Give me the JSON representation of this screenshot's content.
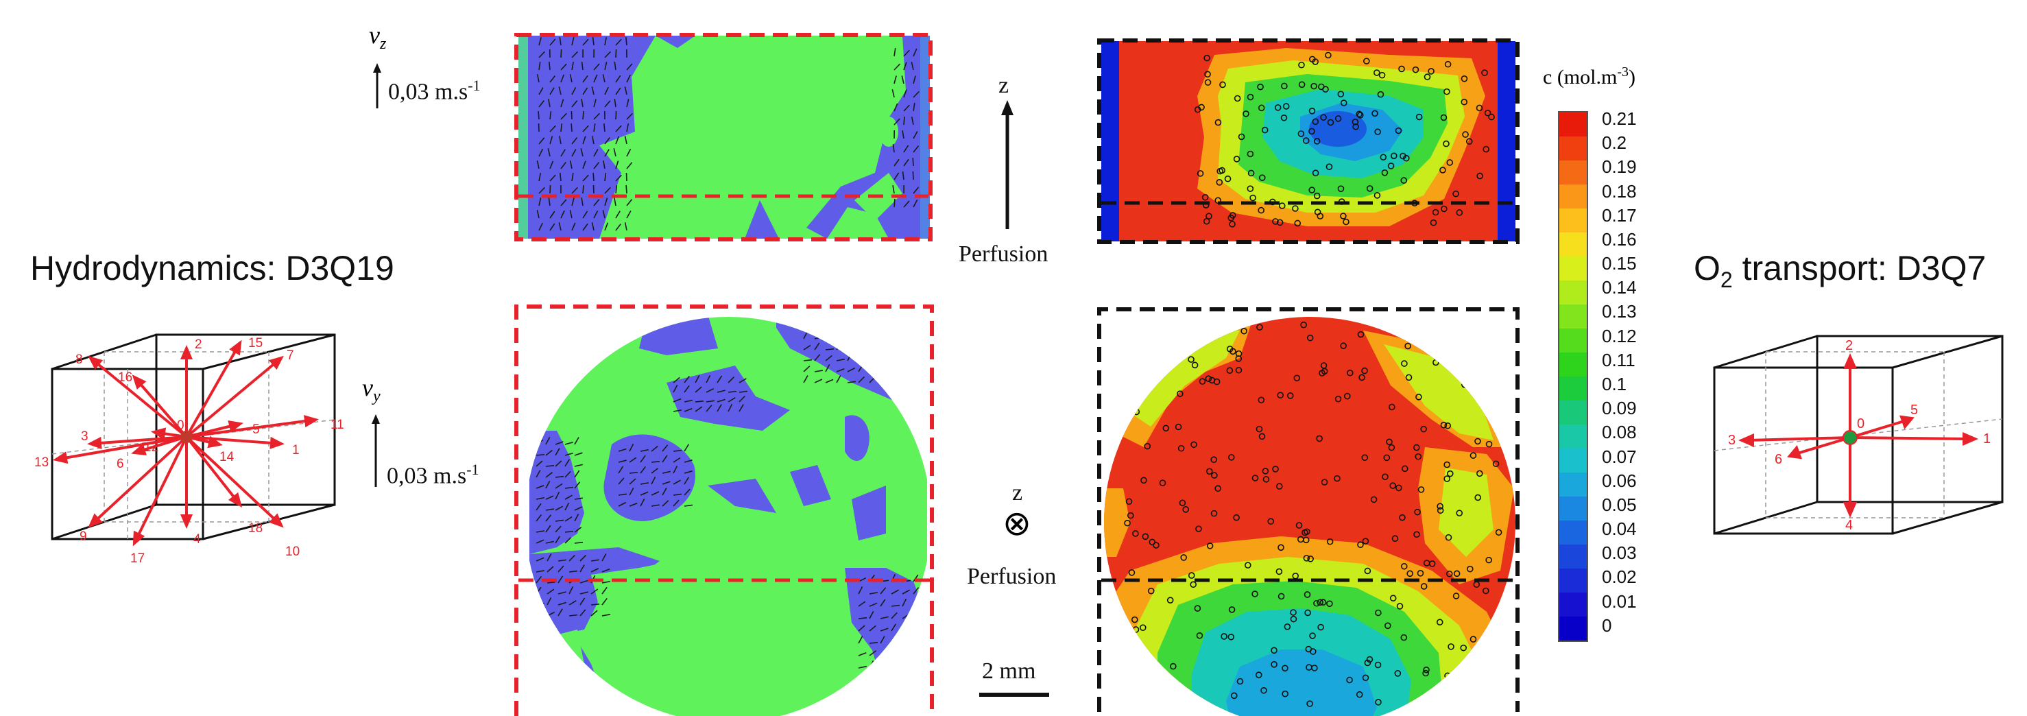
{
  "hydrodynamics": {
    "title": "Hydrodynamics: D3Q19",
    "lattice_labels": [
      "0",
      "1",
      "2",
      "3",
      "4",
      "5",
      "6",
      "7",
      "8",
      "9",
      "10",
      "11",
      "12",
      "13",
      "14",
      "15",
      "16",
      "17",
      "18"
    ]
  },
  "o2_transport": {
    "title_prefix": "O",
    "title_sub": "2",
    "title_suffix": " transport: D3Q7",
    "lattice_labels": [
      "0",
      "1",
      "2",
      "3",
      "4",
      "5",
      "6"
    ]
  },
  "velocity": {
    "vz_symbol": "v",
    "vz_sub": "z",
    "vy_symbol": "v",
    "vy_sub": "y",
    "scale_value": "0,03 m.s",
    "scale_exp": "-1"
  },
  "perfusion": {
    "z_label": "z",
    "label": "Perfusion",
    "symbol": "⊗"
  },
  "scale_bar": {
    "label": "2 mm"
  },
  "colorbar": {
    "title": "c (mol.m",
    "title_exp": "-3",
    "title_end": ")",
    "ticks": [
      "0.21",
      "0.2",
      "0.19",
      "0.18",
      "0.17",
      "0.16",
      "0.15",
      "0.14",
      "0.13",
      "0.12",
      "0.11",
      "0.1",
      "0.09",
      "0.08",
      "0.07",
      "0.06",
      "0.05",
      "0.04",
      "0.03",
      "0.02",
      "0.01",
      "0"
    ],
    "colors": [
      "#e81b0b",
      "#f04010",
      "#f56a14",
      "#fa9618",
      "#fcbf1c",
      "#f6e01d",
      "#d8ef1c",
      "#b0ec1c",
      "#82e41c",
      "#55dc1c",
      "#2ed41c",
      "#1ccc3c",
      "#19c878",
      "#1ac8a8",
      "#1ac0cc",
      "#1aa8dc",
      "#1a88e0",
      "#1a66e0",
      "#1a46dc",
      "#1a2cd8",
      "#1610d0",
      "#0800c8"
    ]
  },
  "colors": {
    "fluid_green": "#5ff25a",
    "solid_blue": "#5f5ce8",
    "red_dash": "#e8222a",
    "black_dash": "#111111",
    "arrow_red": "#e8222a"
  }
}
